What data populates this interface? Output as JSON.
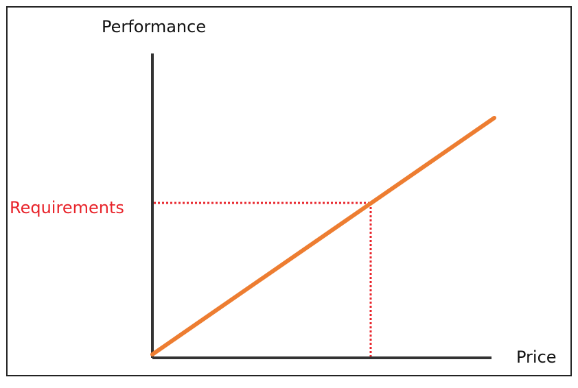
{
  "y_axis_label": "Performance",
  "requirement_label": "Requirements",
  "x_axis_label": "Price"
}
